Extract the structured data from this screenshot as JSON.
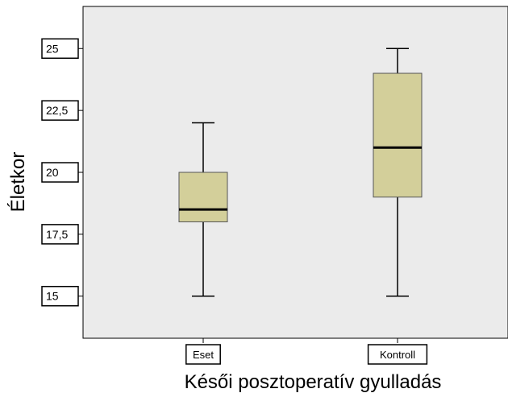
{
  "chart_data": {
    "type": "boxplot",
    "xlabel": "Késői posztoperatív gyulladás",
    "ylabel": "Életkor",
    "categories": [
      "Eset",
      "Kontroll"
    ],
    "y_ticks": [
      "15",
      "17,5",
      "20",
      "22,5",
      "25"
    ],
    "y_tick_values": [
      15,
      17.5,
      20,
      22.5,
      25
    ],
    "ylim": [
      13.3,
      26.7
    ],
    "grid": false,
    "boxes": [
      {
        "category": "Eset",
        "min": 15,
        "q1": 18,
        "median": 18.5,
        "q3": 20,
        "max": 22
      },
      {
        "category": "Kontroll",
        "min": 15,
        "q1": 19,
        "median": 21,
        "q3": 24,
        "max": 25
      }
    ],
    "colors": {
      "plot_background": "#ebebeb",
      "box_fill": "#d3cf9a",
      "line": "#000000",
      "box_stroke": "#555555"
    }
  }
}
